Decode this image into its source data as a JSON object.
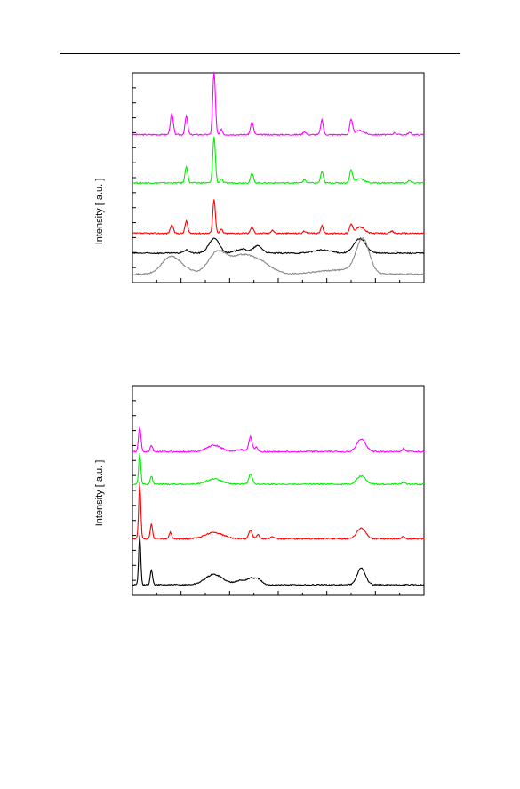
{
  "chart_data": [
    {
      "type": "line",
      "ylabel": "Intensity [ a.u. ]",
      "xlabel": "",
      "xlim": [
        0,
        100
      ],
      "ylim": [
        0,
        100
      ],
      "grid": false,
      "series": [
        {
          "color": "#ff00ff",
          "baseline": 70.5,
          "broad": 0,
          "peaks": [
            [
              13.5,
              10,
              0.5
            ],
            [
              18.5,
              9,
              0.45
            ],
            [
              28,
              30,
              0.45
            ],
            [
              30.5,
              2.5,
              0.4
            ],
            [
              41,
              6,
              0.5
            ],
            [
              59,
              1.5,
              0.5
            ],
            [
              65,
              7,
              0.45
            ],
            [
              75,
              7,
              0.5
            ],
            [
              78,
              2,
              1.5
            ],
            [
              90,
              1,
              0.5
            ],
            [
              95,
              1,
              0.5
            ]
          ]
        },
        {
          "color": "#00ee00",
          "baseline": 47.5,
          "broad": 0,
          "peaks": [
            [
              18.5,
              8,
              0.45
            ],
            [
              28,
              22,
              0.45
            ],
            [
              30.5,
              2,
              0.4
            ],
            [
              41,
              4.5,
              0.5
            ],
            [
              59,
              1.5,
              0.5
            ],
            [
              65,
              5.5,
              0.45
            ],
            [
              75,
              6,
              0.5
            ],
            [
              78,
              2,
              1.5
            ],
            [
              95,
              1,
              0.5
            ]
          ]
        },
        {
          "color": "#ff0000",
          "baseline": 23.5,
          "broad": 0,
          "peaks": [
            [
              13.5,
              4,
              0.5
            ],
            [
              18.5,
              6,
              0.45
            ],
            [
              28,
              16,
              0.45
            ],
            [
              30.5,
              2,
              0.4
            ],
            [
              41,
              3,
              0.5
            ],
            [
              48,
              1.5,
              0.5
            ],
            [
              59,
              1,
              0.5
            ],
            [
              65,
              3.5,
              0.45
            ],
            [
              75,
              4,
              0.5
            ],
            [
              78,
              3,
              1.5
            ],
            [
              89,
              1,
              0.5
            ]
          ]
        },
        {
          "color": "#000000",
          "baseline": 14,
          "broad": 0,
          "peaks": [
            [
              18.5,
              1.5,
              1
            ],
            [
              28,
              7,
              1.8
            ],
            [
              37.5,
              2,
              2
            ],
            [
              43,
              3.5,
              1.5
            ],
            [
              65,
              1.5,
              3
            ],
            [
              78,
              7,
              2
            ]
          ]
        },
        {
          "color": "#888888",
          "baseline": 4,
          "broad": 1,
          "peaks": [
            [
              13,
              8,
              3
            ],
            [
              18,
              2,
              3
            ],
            [
              29,
              10,
              3
            ],
            [
              37,
              8,
              4
            ],
            [
              44,
              5,
              4
            ],
            [
              64,
              1,
              5
            ],
            [
              79,
              16,
              2.2
            ],
            [
              74,
              2,
              5
            ]
          ]
        }
      ]
    },
    {
      "type": "line",
      "ylabel": "Intensity [ a.u. ]",
      "xlabel": "",
      "xlim": [
        0,
        100
      ],
      "ylim": [
        0,
        100
      ],
      "grid": false,
      "series": [
        {
          "color": "#ff00ff",
          "baseline": 68.5,
          "broad": 0,
          "peaks": [
            [
              2.5,
              12,
              0.4
            ],
            [
              6.5,
              3,
              0.4
            ],
            [
              28,
              3,
              2.5
            ],
            [
              37,
              1,
              1.5
            ],
            [
              40.5,
              7,
              0.6
            ],
            [
              42.5,
              2,
              0.5
            ],
            [
              78.5,
              6,
              1.5
            ],
            [
              93,
              1.5,
              0.5
            ]
          ]
        },
        {
          "color": "#00ee00",
          "baseline": 53,
          "broad": 0,
          "peaks": [
            [
              2.5,
              15,
              0.35
            ],
            [
              6.5,
              4,
              0.4
            ],
            [
              28,
              2.5,
              2.5
            ],
            [
              40.5,
              5,
              0.6
            ],
            [
              78.5,
              4,
              1.5
            ],
            [
              93,
              1,
              0.5
            ]
          ]
        },
        {
          "color": "#ff0000",
          "baseline": 27,
          "broad": 0,
          "peaks": [
            [
              2.5,
              27,
              0.35
            ],
            [
              6.5,
              7,
              0.4
            ],
            [
              13,
              3,
              0.4
            ],
            [
              28,
              3,
              3
            ],
            [
              40.5,
              4,
              0.6
            ],
            [
              43,
              2,
              0.5
            ],
            [
              48,
              1,
              0.5
            ],
            [
              78.5,
              5,
              1.5
            ],
            [
              93,
              1,
              0.5
            ]
          ]
        },
        {
          "color": "#000000",
          "baseline": 5,
          "broad": 1,
          "peaks": [
            [
              2.5,
              24,
              0.35
            ],
            [
              6.5,
              7,
              0.4
            ],
            [
              28,
              5,
              3
            ],
            [
              37,
              2,
              2
            ],
            [
              41,
              3,
              1.5
            ],
            [
              43.5,
              2,
              1
            ],
            [
              78.5,
              8,
              1.4
            ]
          ]
        }
      ]
    }
  ]
}
